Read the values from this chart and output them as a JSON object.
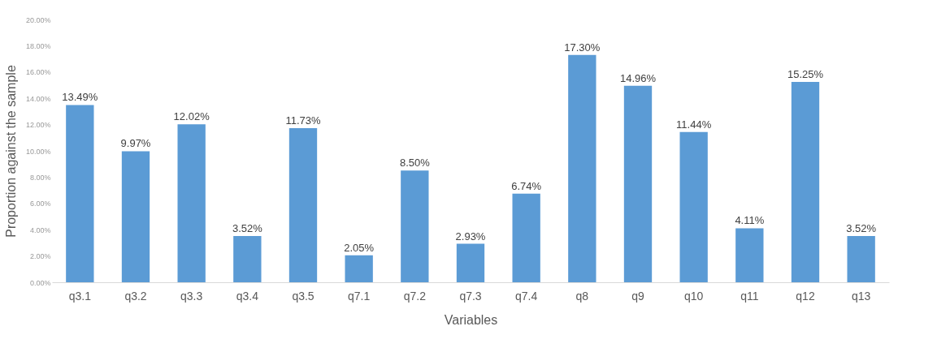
{
  "chart_data": {
    "type": "bar",
    "xlabel": "Variables",
    "ylabel": "Proportion against the sample",
    "categories": [
      "q3.1",
      "q3.2",
      "q3.3",
      "q3.4",
      "q3.5",
      "q7.1",
      "q7.2",
      "q7.3",
      "q7.4",
      "q8",
      "q9",
      "q10",
      "q11",
      "q12",
      "q13"
    ],
    "values": [
      13.49,
      9.97,
      12.02,
      3.52,
      11.73,
      2.05,
      8.5,
      2.93,
      6.74,
      17.3,
      14.96,
      11.44,
      4.11,
      15.25,
      3.52
    ],
    "value_labels": [
      "13.49%",
      "9.97%",
      "12.02%",
      "3.52%",
      "11.73%",
      "2.05%",
      "8.50%",
      "2.93%",
      "6.74%",
      "17.30%",
      "14.96%",
      "11.44%",
      "4.11%",
      "15.25%",
      "3.52%"
    ],
    "color": "#5b9bd5",
    "ylim": [
      0,
      20
    ],
    "yticks": [
      {
        "value": 0,
        "label": "0.00%"
      },
      {
        "value": 2,
        "label": "2.00%"
      },
      {
        "value": 4,
        "label": "4.00%"
      },
      {
        "value": 6,
        "label": "6.00%"
      },
      {
        "value": 8,
        "label": "8.00%"
      },
      {
        "value": 10,
        "label": "10.00%"
      },
      {
        "value": 12,
        "label": "12.00%"
      },
      {
        "value": 14,
        "label": "14.00%"
      },
      {
        "value": 16,
        "label": "16.00%"
      },
      {
        "value": 18,
        "label": "18.00%"
      },
      {
        "value": 20,
        "label": "20.00%"
      }
    ],
    "grid": false
  }
}
